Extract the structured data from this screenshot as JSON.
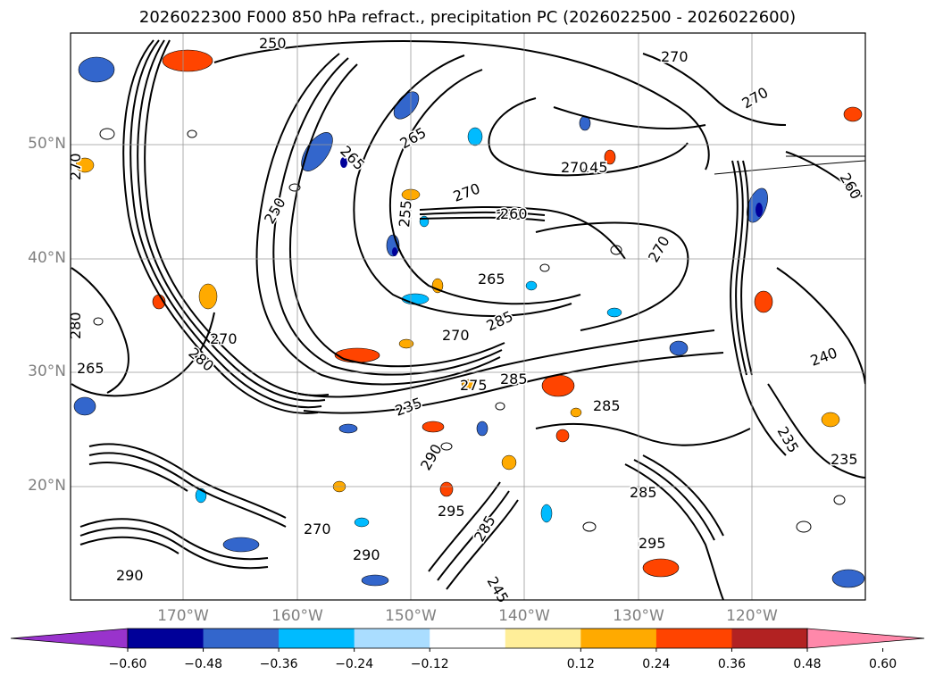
{
  "title": "2026022300 F000 850 hPa refract., precipitation PC (2026022500 - 2026022600)",
  "lat_labels": [
    "50°N",
    "40°N",
    "30°N",
    "20°N"
  ],
  "lon_labels": [
    "170°W",
    "160°W",
    "150°W",
    "140°W",
    "130°W",
    "120°W"
  ],
  "colorbar": {
    "ticks": [
      "−0.60",
      "−0.48",
      "−0.36",
      "−0.24",
      "−0.12",
      "0.12",
      "0.24",
      "0.36",
      "0.48",
      "0.60"
    ],
    "colors": [
      "#9933cc",
      "#000099",
      "#3366cc",
      "#00bbff",
      "#aaddff",
      "#ffffff",
      "#ffee99",
      "#ffaa00",
      "#ff4400",
      "#b22222",
      "#ff88aa"
    ]
  },
  "contour_labels": [
    "250",
    "270",
    "265",
    "270",
    "265",
    "245",
    "265",
    "270",
    "270",
    "250",
    "255",
    "260",
    "270",
    "265",
    "270",
    "285",
    "270",
    "265",
    "270",
    "280",
    "275",
    "285",
    "285",
    "235",
    "240",
    "235",
    "235",
    "290",
    "295",
    "285",
    "295",
    "290",
    "290",
    "285",
    "270",
    "280",
    "245",
    "260"
  ]
}
